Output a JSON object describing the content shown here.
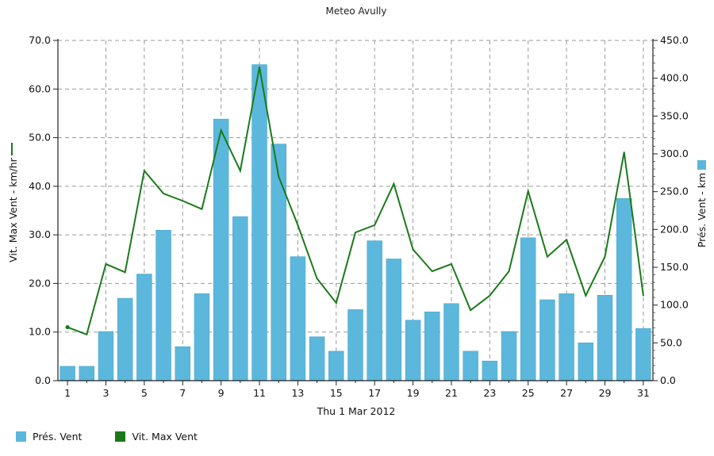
{
  "chart_data": {
    "type": "bar",
    "title": "Meteo  Avully",
    "xlabel": "Thu 1 Mar 2012",
    "ylabel_left": "Vit. Max Vent - km/hr",
    "ylabel_right": "Prés. Vent - km",
    "ylim_left": [
      0,
      70
    ],
    "ylim_right": [
      0,
      450
    ],
    "yticks_left": [
      "0.0",
      "10.0",
      "20.0",
      "30.0",
      "40.0",
      "50.0",
      "60.0",
      "70.0"
    ],
    "yticks_right": [
      "0.0",
      "50.0",
      "100.0",
      "150.0",
      "200.0",
      "250.0",
      "300.0",
      "350.0",
      "400.0",
      "450.0"
    ],
    "xtick_labels": [
      "1",
      "3",
      "5",
      "7",
      "9",
      "11",
      "13",
      "15",
      "17",
      "19",
      "21",
      "23",
      "25",
      "27",
      "29",
      "31"
    ],
    "grid": true,
    "legend_position": "bottom-left",
    "days": [
      1,
      2,
      3,
      4,
      5,
      6,
      7,
      8,
      9,
      10,
      11,
      12,
      13,
      14,
      15,
      16,
      17,
      18,
      19,
      20,
      21,
      22,
      23,
      24,
      25,
      26,
      27,
      28,
      29,
      30,
      31
    ],
    "series": [
      {
        "name": "Prés. Vent",
        "type": "bar",
        "axis": "right",
        "color": "#5bb8dc",
        "values": [
          19,
          19,
          65,
          109,
          141,
          199,
          45,
          115,
          346,
          217,
          418,
          313,
          164,
          58,
          39,
          94,
          185,
          161,
          80,
          91,
          102,
          39,
          26,
          65,
          189,
          107,
          115,
          50,
          113,
          241,
          69
        ]
      },
      {
        "name": "Vit. Max Vent",
        "type": "line",
        "axis": "left",
        "color": "#1a7a1a",
        "values": [
          11.0,
          9.5,
          24.0,
          22.3,
          43.2,
          38.5,
          37.0,
          35.3,
          51.5,
          43.2,
          64.5,
          42.0,
          32.0,
          21.0,
          16.0,
          30.5,
          32.0,
          40.5,
          27.0,
          22.5,
          24.0,
          14.5,
          17.5,
          22.5,
          39.0,
          25.5,
          29.0,
          17.5,
          25.5,
          47.0,
          17.5
        ]
      }
    ]
  }
}
